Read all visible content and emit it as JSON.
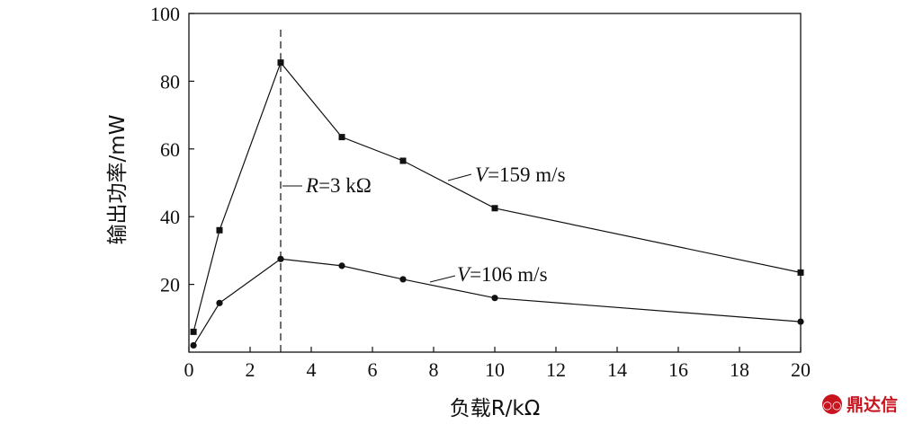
{
  "chart_data": {
    "type": "line",
    "title": "",
    "xlabel": "负载R/kΩ",
    "ylabel": "输出功率/mW",
    "xlim": [
      0,
      20
    ],
    "ylim": [
      0,
      100
    ],
    "xticks": [
      0,
      2,
      4,
      6,
      8,
      10,
      12,
      14,
      16,
      18,
      20
    ],
    "yticks": [
      20,
      40,
      60,
      80,
      100
    ],
    "series": [
      {
        "name": "V=159 m/s",
        "label_var": "V",
        "label_rest": "=159 m/s",
        "marker": "square",
        "x": [
          0.15,
          1,
          3,
          5,
          7,
          10,
          20
        ],
        "values": [
          6,
          36,
          85.5,
          63.5,
          56.5,
          42.5,
          23.5
        ]
      },
      {
        "name": "V=106 m/s",
        "label_var": "V",
        "label_rest": "=106 m/s",
        "marker": "circle",
        "x": [
          0.15,
          1,
          3,
          5,
          7,
          10,
          20
        ],
        "values": [
          2,
          14.5,
          27.5,
          25.5,
          21.5,
          16,
          9
        ]
      }
    ],
    "reference_line": {
      "x": 3,
      "style": "dashed",
      "label_var": "R",
      "label_rest": "=3 kΩ"
    }
  },
  "watermark": {
    "text": "鼎达信",
    "color": "#c8141e"
  }
}
